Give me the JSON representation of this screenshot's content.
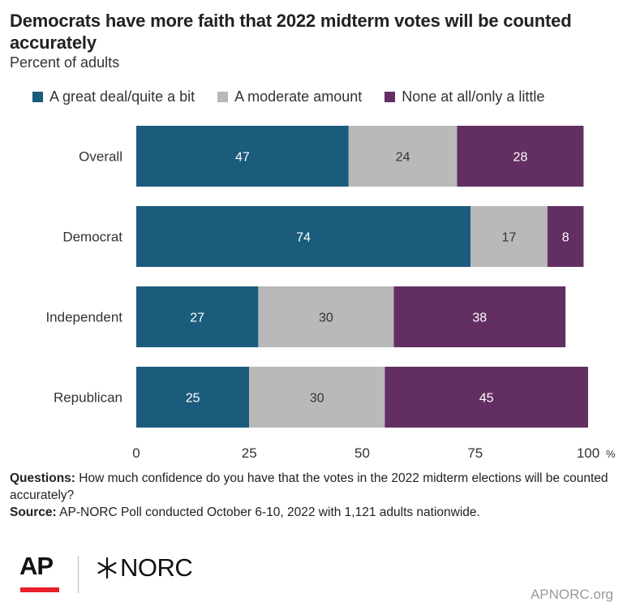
{
  "header": {
    "title": "Democrats have more faith that 2022 midterm votes will be counted accurately",
    "subtitle": "Percent of adults"
  },
  "legend": [
    {
      "label": "A great deal/quite a bit",
      "color": "#1b5c7d"
    },
    {
      "label": "A moderate amount",
      "color": "#b9b9b9"
    },
    {
      "label": "None at all/only a little",
      "color": "#632f63"
    }
  ],
  "chart_data": {
    "type": "bar",
    "orientation": "horizontal",
    "stacked": true,
    "categories": [
      "Overall",
      "Democrat",
      "Independent",
      "Republican"
    ],
    "series": [
      {
        "name": "A great deal/quite a bit",
        "color": "#1b5c7d",
        "label_color": "#ffffff",
        "values": [
          47,
          74,
          27,
          25
        ]
      },
      {
        "name": "A moderate amount",
        "color": "#b9b9b9",
        "label_color": "#333333",
        "values": [
          24,
          17,
          30,
          30
        ]
      },
      {
        "name": "None at all/only a little",
        "color": "#632f63",
        "label_color": "#ffffff",
        "values": [
          28,
          8,
          38,
          45
        ]
      }
    ],
    "xlim": [
      0,
      100
    ],
    "xticks": [
      0,
      25,
      50,
      75,
      100
    ],
    "x_unit_suffix": "%",
    "legend_position": "top",
    "grid": false
  },
  "notes": {
    "questions_label": "Questions:",
    "questions_text": " How much confidence do you have that the votes in the 2022 midterm elections will be counted accurately?",
    "source_label": "Source:",
    "source_text": " AP-NORC Poll conducted October 6-10, 2022 with 1,121 adults nationwide."
  },
  "footer": {
    "logo_ap": "AP",
    "logo_norc": "NORC",
    "site": "APNORC.org"
  }
}
